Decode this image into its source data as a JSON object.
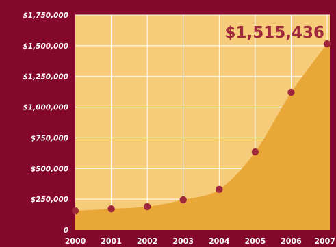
{
  "colors": {
    "background": "#83082b",
    "plot_background": "#f6cc7a",
    "area_fill": "#e9a737",
    "gridline": "#ffffff",
    "marker": "#a0283c",
    "callout_text": "#a0283c",
    "tick_text": "#ffffff"
  },
  "callout": {
    "text": "$1,515,436"
  },
  "chart_data": {
    "type": "area",
    "title": "",
    "xlabel": "",
    "ylabel": "",
    "x": [
      2000,
      2001,
      2002,
      2003,
      2004,
      2005,
      2006,
      2007
    ],
    "x_tick_labels": [
      "2000",
      "2001",
      "2002",
      "2003",
      "2004",
      "2005",
      "2006",
      "2007"
    ],
    "series": [
      {
        "values": [
          155000,
          172000,
          190000,
          245000,
          330000,
          635000,
          1120000,
          1515436
        ],
        "markers": true
      }
    ],
    "ylim": [
      0,
      1750000
    ],
    "y_ticks": [
      0,
      250000,
      500000,
      750000,
      1000000,
      1250000,
      1500000,
      1750000
    ],
    "y_tick_labels": [
      "0",
      "$250,000",
      "$500,000",
      "$750,000",
      "$1,000,000",
      "$1,250,000",
      "$1,500,000",
      "$1,750,000"
    ],
    "grid": true,
    "legend": "none"
  }
}
